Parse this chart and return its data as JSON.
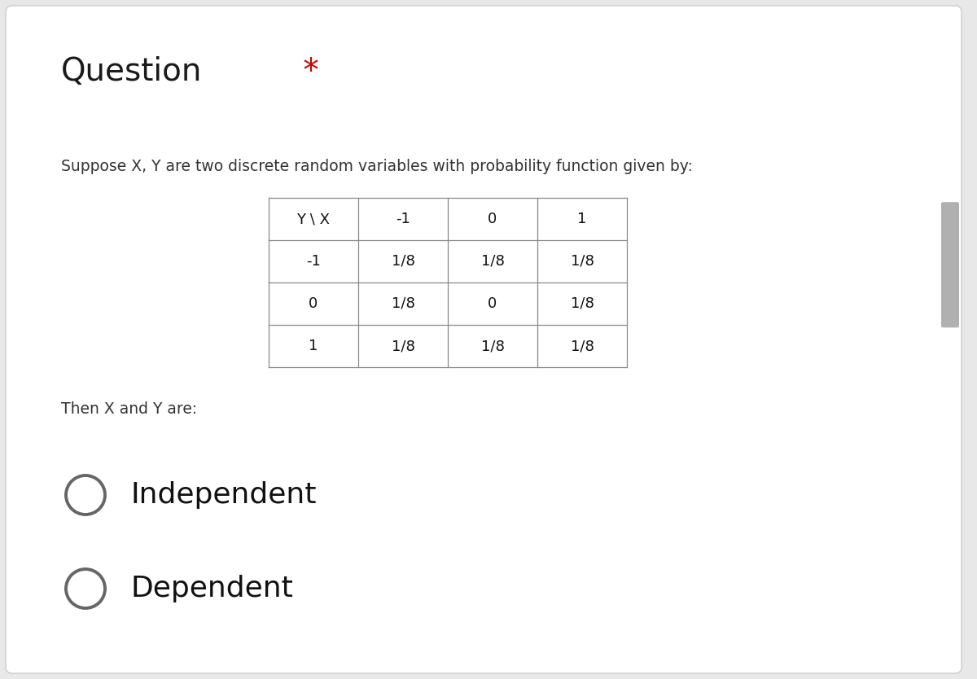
{
  "background_color": "#e8e8e8",
  "card_color": "#ffffff",
  "title_text": "Question",
  "title_star": " *",
  "title_fontsize": 28,
  "title_star_color": "#cc0000",
  "title_color": "#1a1a1a",
  "subtitle_text": "Suppose X, Y are two discrete random variables with probability function given by:",
  "subtitle_fontsize": 13.5,
  "subtitle_color": "#333333",
  "table_header_row": [
    "Y \\ X",
    "-1",
    "0",
    "1"
  ],
  "table_row_labels": [
    "-1",
    "0",
    "1"
  ],
  "table_data": [
    [
      "1/8",
      "1/8",
      "1/8"
    ],
    [
      "1/8",
      "0",
      "1/8"
    ],
    [
      "1/8",
      "1/8",
      "1/8"
    ]
  ],
  "then_text": "Then X and Y are:",
  "then_fontsize": 13.5,
  "then_color": "#333333",
  "option1_text": "Independent",
  "option2_text": "Dependent",
  "option_fontsize": 26,
  "option_color": "#111111",
  "circle_edge_color": "#666666",
  "circle_linewidth": 2.8,
  "scrollbar_color": "#b0b0b0",
  "table_line_color": "#888888",
  "table_fontsize": 13
}
